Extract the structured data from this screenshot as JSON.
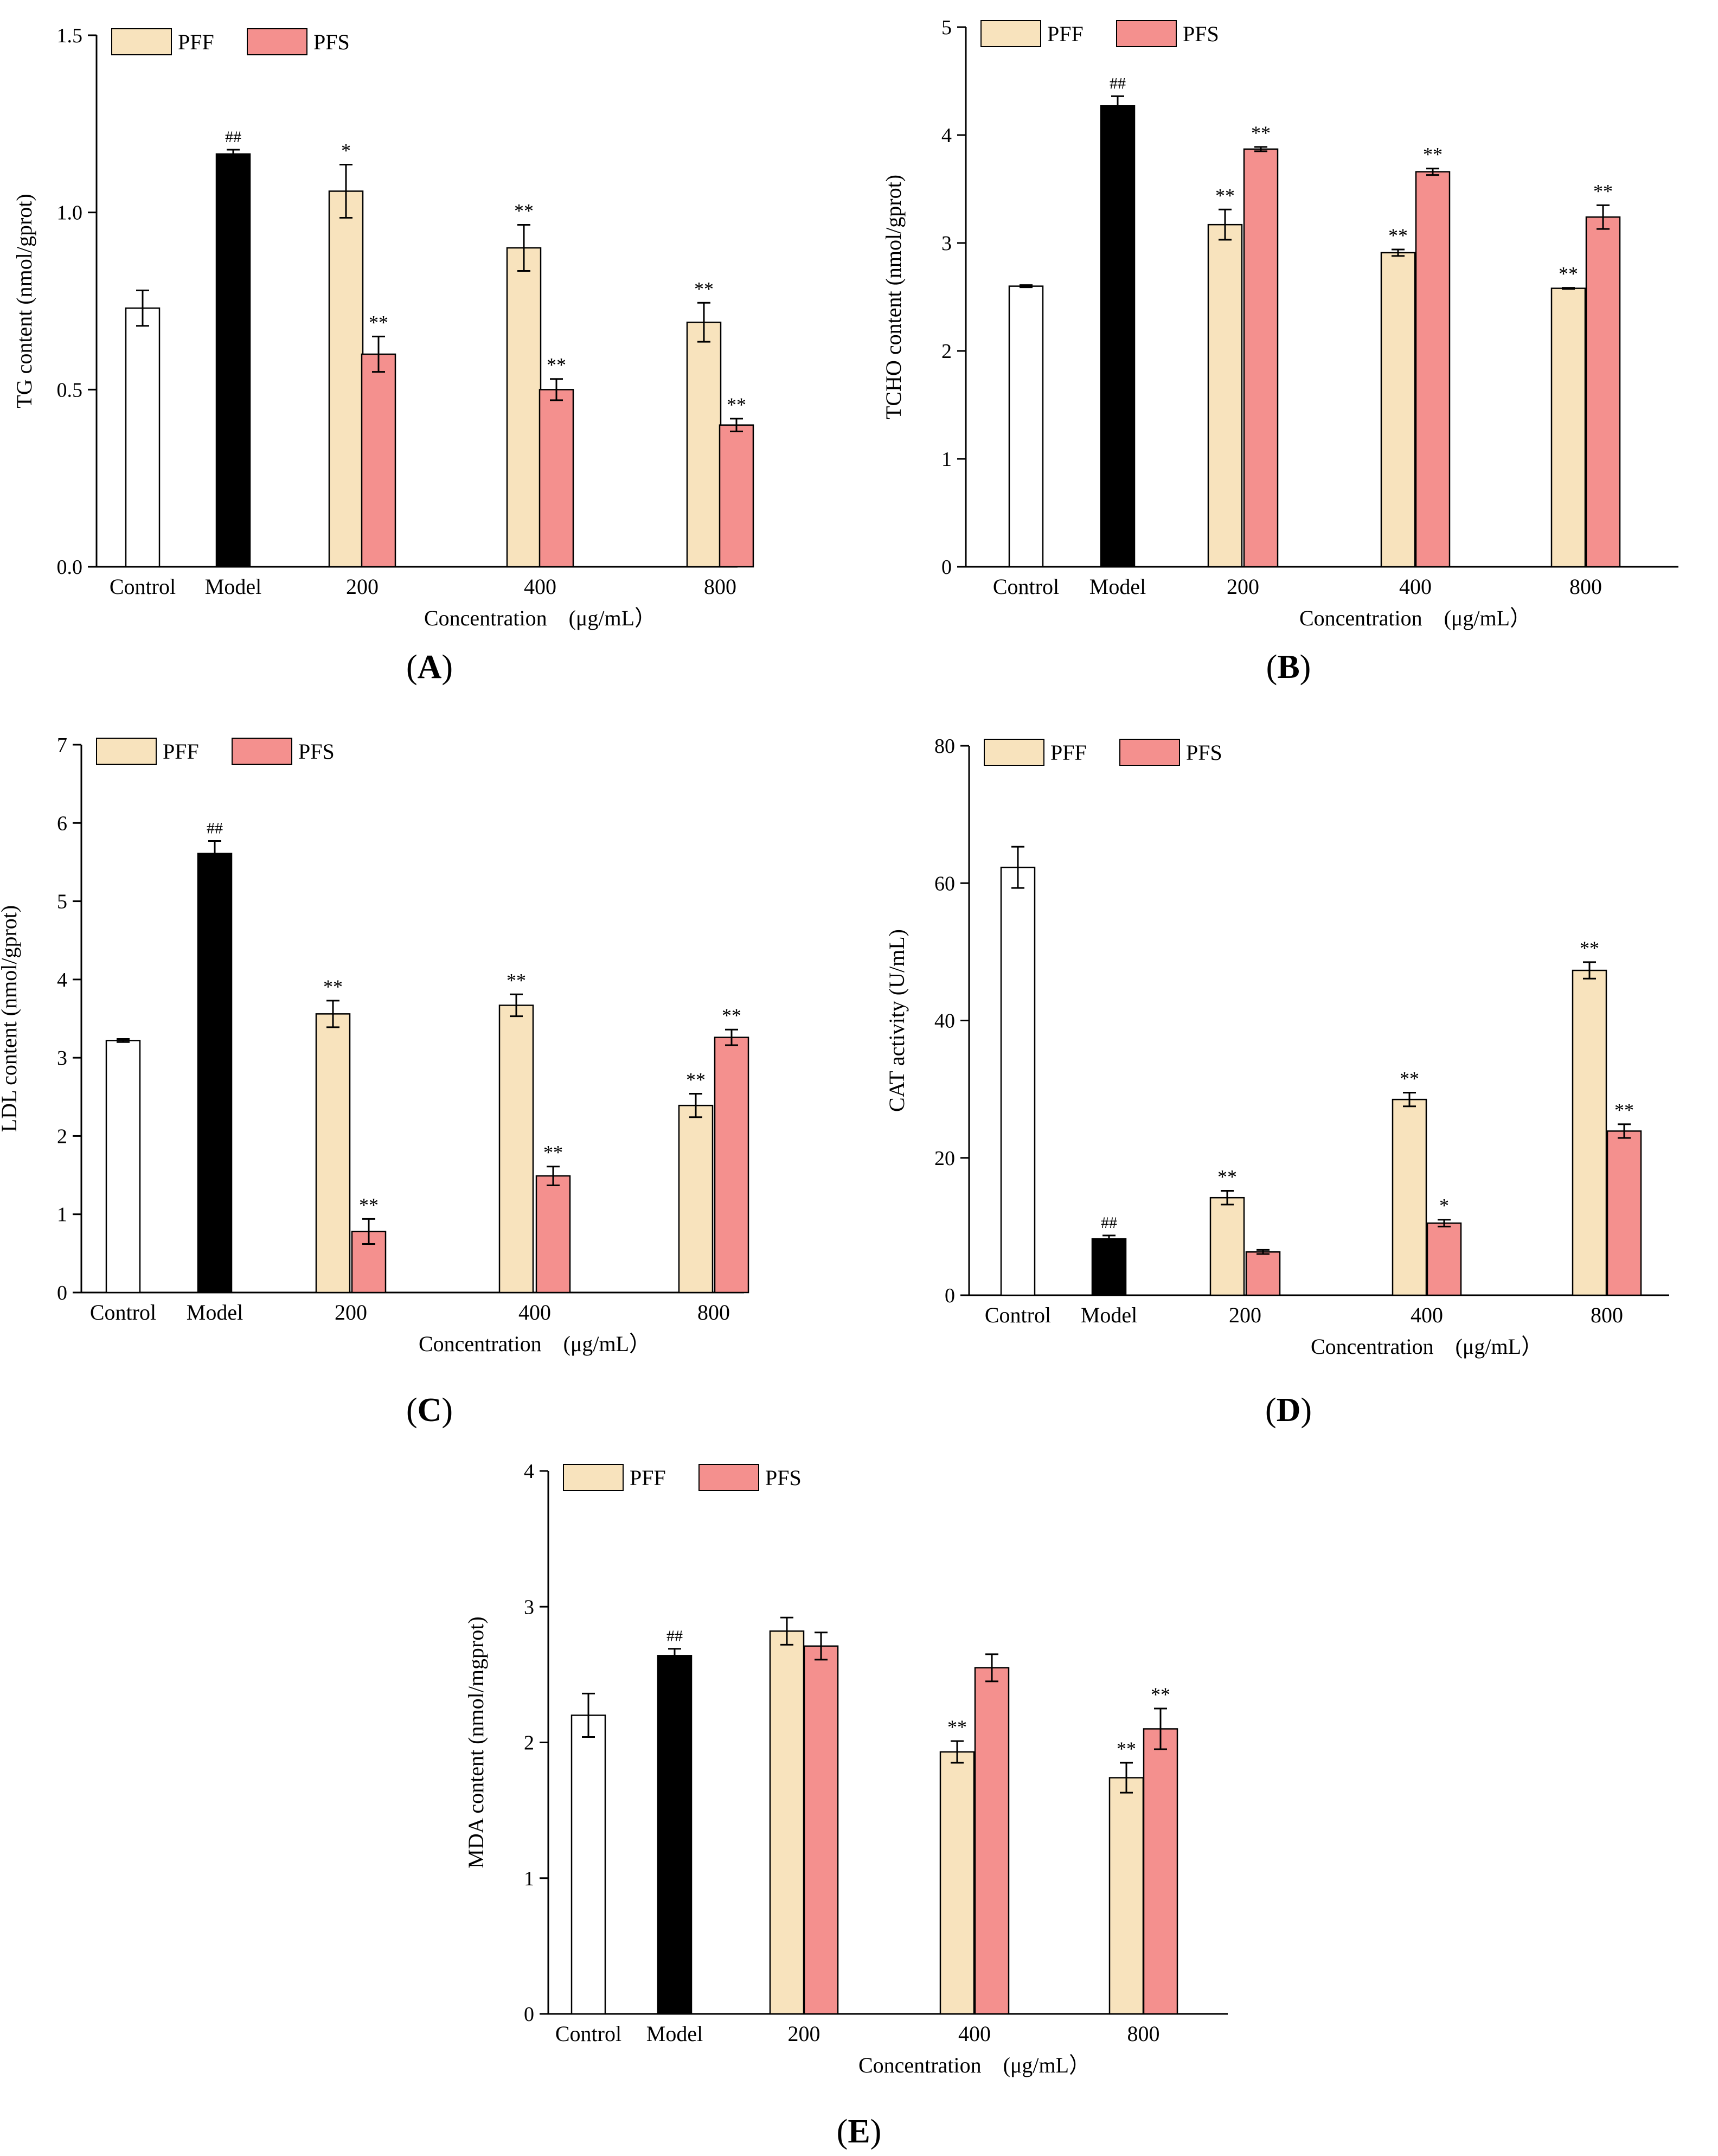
{
  "colors": {
    "control": "#ffffff",
    "model": "#000000",
    "pff": "#f8e3bd",
    "pfs": "#f4908e",
    "axis": "#000000"
  },
  "chart_data": [
    {
      "id": "A",
      "panel_label": "A",
      "type": "bar",
      "ylabel": "TG content (nmol/gprot)",
      "xlabel": "Concentration　(μg/mL）",
      "ylim": [
        0,
        1.5
      ],
      "yticks": [
        0.0,
        0.5,
        1.0,
        1.5
      ],
      "ytick_labels": [
        "0.0",
        "0.5",
        "1.0",
        "1.5"
      ],
      "legend": [
        "PFF",
        "PFS"
      ],
      "control": {
        "label": "Control",
        "value": 0.73,
        "err": 0.05,
        "mark": ""
      },
      "model": {
        "label": "Model",
        "value": 1.165,
        "err": 0.012,
        "mark": "##"
      },
      "groups": [
        {
          "label": "200",
          "pff": {
            "value": 1.06,
            "err": 0.075,
            "mark": "*"
          },
          "pfs": {
            "value": 0.6,
            "err": 0.05,
            "mark": "**"
          }
        },
        {
          "label": "400",
          "pff": {
            "value": 0.9,
            "err": 0.065,
            "mark": "**"
          },
          "pfs": {
            "value": 0.5,
            "err": 0.03,
            "mark": "**"
          }
        },
        {
          "label": "800",
          "pff": {
            "value": 0.69,
            "err": 0.055,
            "mark": "**"
          },
          "pfs": {
            "value": 0.4,
            "err": 0.018,
            "mark": "**"
          }
        }
      ]
    },
    {
      "id": "B",
      "panel_label": "B",
      "type": "bar",
      "ylabel": "TCHO content (nmol/gprot)",
      "xlabel": "Concentration　(μg/mL）",
      "ylim": [
        0,
        5
      ],
      "yticks": [
        0,
        1,
        2,
        3,
        4,
        5
      ],
      "ytick_labels": [
        "0",
        "1",
        "2",
        "3",
        "4",
        "5"
      ],
      "legend": [
        "PFF",
        "PFS"
      ],
      "control": {
        "label": "Control",
        "value": 2.6,
        "err": 0.01,
        "mark": ""
      },
      "model": {
        "label": "Model",
        "value": 4.27,
        "err": 0.09,
        "mark": "##"
      },
      "groups": [
        {
          "label": "200",
          "pff": {
            "value": 3.17,
            "err": 0.14,
            "mark": "**"
          },
          "pfs": {
            "value": 3.87,
            "err": 0.02,
            "mark": "**"
          }
        },
        {
          "label": "400",
          "pff": {
            "value": 2.91,
            "err": 0.03,
            "mark": "**"
          },
          "pfs": {
            "value": 3.66,
            "err": 0.03,
            "mark": "**"
          }
        },
        {
          "label": "800",
          "pff": {
            "value": 2.58,
            "err": 0.005,
            "mark": "**"
          },
          "pfs": {
            "value": 3.24,
            "err": 0.11,
            "mark": "**"
          }
        }
      ]
    },
    {
      "id": "C",
      "panel_label": "C",
      "type": "bar",
      "ylabel": "LDL content (nmol/gprot)",
      "xlabel": "Concentration　(μg/mL）",
      "ylim": [
        0,
        7
      ],
      "yticks": [
        0,
        1,
        2,
        3,
        4,
        5,
        6,
        7
      ],
      "ytick_labels": [
        "0",
        "1",
        "2",
        "3",
        "4",
        "5",
        "6",
        "7"
      ],
      "legend": [
        "PFF",
        "PFS"
      ],
      "control": {
        "label": "Control",
        "value": 3.22,
        "err": 0.02,
        "mark": ""
      },
      "model": {
        "label": "Model",
        "value": 5.61,
        "err": 0.16,
        "mark": "##"
      },
      "groups": [
        {
          "label": "200",
          "pff": {
            "value": 3.56,
            "err": 0.17,
            "mark": "**"
          },
          "pfs": {
            "value": 0.78,
            "err": 0.16,
            "mark": "**"
          }
        },
        {
          "label": "400",
          "pff": {
            "value": 3.67,
            "err": 0.14,
            "mark": "**"
          },
          "pfs": {
            "value": 1.49,
            "err": 0.12,
            "mark": "**"
          }
        },
        {
          "label": "800",
          "pff": {
            "value": 2.39,
            "err": 0.15,
            "mark": "**"
          },
          "pfs": {
            "value": 3.26,
            "err": 0.1,
            "mark": "**"
          }
        }
      ]
    },
    {
      "id": "D",
      "panel_label": "D",
      "type": "bar",
      "ylabel": "CAT activity (U/mL)",
      "xlabel": "Concentration　(μg/mL）",
      "ylim": [
        0,
        80
      ],
      "yticks": [
        0,
        20,
        40,
        60,
        80
      ],
      "ytick_labels": [
        "0",
        "20",
        "40",
        "60",
        "80"
      ],
      "legend": [
        "PFF",
        "PFS"
      ],
      "control": {
        "label": "Control",
        "value": 62.3,
        "err": 3.0,
        "mark": ""
      },
      "model": {
        "label": "Model",
        "value": 8.2,
        "err": 0.5,
        "mark": "##"
      },
      "groups": [
        {
          "label": "200",
          "pff": {
            "value": 14.2,
            "err": 1.0,
            "mark": "**"
          },
          "pfs": {
            "value": 6.3,
            "err": 0.3,
            "mark": ""
          }
        },
        {
          "label": "400",
          "pff": {
            "value": 28.5,
            "err": 1.0,
            "mark": "**"
          },
          "pfs": {
            "value": 10.5,
            "err": 0.5,
            "mark": "*"
          }
        },
        {
          "label": "800",
          "pff": {
            "value": 47.3,
            "err": 1.2,
            "mark": "**"
          },
          "pfs": {
            "value": 23.9,
            "err": 1.0,
            "mark": "**"
          }
        }
      ]
    },
    {
      "id": "E",
      "panel_label": "E",
      "type": "bar",
      "ylabel": "MDA content (nmol/mgprot)",
      "xlabel": "Concentration　(μg/mL）",
      "ylim": [
        0,
        4
      ],
      "yticks": [
        0,
        1,
        2,
        3,
        4
      ],
      "ytick_labels": [
        "0",
        "1",
        "2",
        "3",
        "4"
      ],
      "legend": [
        "PFF",
        "PFS"
      ],
      "control": {
        "label": "Control",
        "value": 2.2,
        "err": 0.16,
        "mark": ""
      },
      "model": {
        "label": "Model",
        "value": 2.64,
        "err": 0.05,
        "mark": "##"
      },
      "groups": [
        {
          "label": "200",
          "pff": {
            "value": 2.82,
            "err": 0.1,
            "mark": ""
          },
          "pfs": {
            "value": 2.71,
            "err": 0.1,
            "mark": ""
          }
        },
        {
          "label": "400",
          "pff": {
            "value": 1.93,
            "err": 0.08,
            "mark": "**"
          },
          "pfs": {
            "value": 2.55,
            "err": 0.1,
            "mark": ""
          }
        },
        {
          "label": "800",
          "pff": {
            "value": 1.74,
            "err": 0.11,
            "mark": "**"
          },
          "pfs": {
            "value": 2.1,
            "err": 0.15,
            "mark": "**"
          }
        }
      ]
    }
  ]
}
